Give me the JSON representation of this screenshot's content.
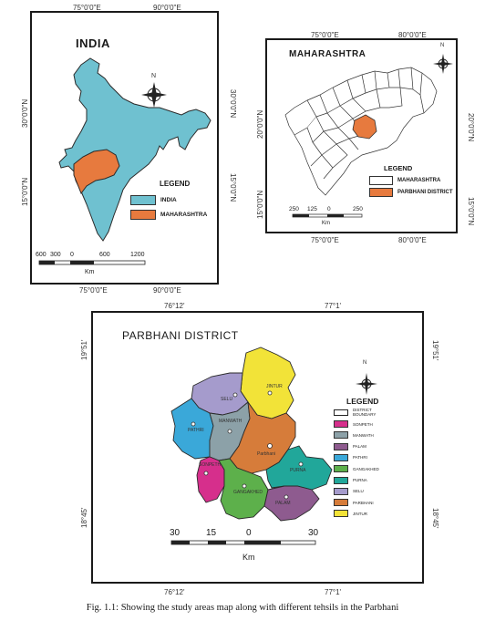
{
  "colors": {
    "india": "#6fc1d0",
    "maharashtra": "#e77a3e",
    "sonpeth": "#d62f8c",
    "manwath": "#8ca1a8",
    "palam": "#8e5b8f",
    "pathri": "#3aa8d9",
    "gangakhed": "#5db04b",
    "purna": "#21a79a",
    "selu": "#a59bcc",
    "parbhani": "#d67c3a",
    "jintur": "#f2e338"
  },
  "india_map": {
    "title": "INDIA",
    "ticks_top": [
      "75°0'0\"E",
      "90°0'0\"E"
    ],
    "ticks_bottom": [
      "75°0'0\"E",
      "90°0'0\"E"
    ],
    "ticks_left": [
      "30°0'0\"N",
      "15°0'0\"N"
    ],
    "ticks_right": [
      "30°0'0\"N",
      "15°0'0\"N"
    ],
    "compass_n": "N",
    "legend_title": "LEGEND",
    "legend": [
      {
        "label": "INDIA",
        "color_key": "india"
      },
      {
        "label": "MAHARASHTRA",
        "color_key": "maharashtra"
      }
    ],
    "scale_labels": [
      "600",
      "300",
      "0",
      "600",
      "1200"
    ],
    "scale_unit": "Km"
  },
  "maharashtra_map": {
    "title": "MAHARASHTRA",
    "ticks_top": [
      "75°0'0\"E",
      "80°0'0\"E"
    ],
    "ticks_bottom": [
      "75°0'0\"E",
      "80°0'0\"E"
    ],
    "ticks_left": [
      "20°0'0\"N",
      "15°0'0\"N"
    ],
    "ticks_right": [
      "20°0'0\"N",
      "15°0'0\"N"
    ],
    "compass_n": "N",
    "legend_title": "LEGEND",
    "legend": [
      {
        "label": "MAHARASHTRA",
        "color_key": "white"
      },
      {
        "label": "PARBHANI DISTRICT",
        "color_key": "maharashtra"
      }
    ],
    "scale_labels": [
      "250",
      "125",
      "0",
      "250"
    ],
    "scale_unit": "Km"
  },
  "parbhani_map": {
    "title": "PARBHANI DISTRICT",
    "ticks_top": [
      "76°12'",
      "77°1'"
    ],
    "ticks_bottom": [
      "76°12'",
      "77°1'"
    ],
    "ticks_left": [
      "19°51'",
      "18°45'"
    ],
    "ticks_right": [
      "19°51'",
      "18°45'"
    ],
    "compass_n": "N",
    "legend_title": "LEGEND",
    "boundary_label": "DISTRICT BOUNDARY",
    "tehsils": [
      {
        "name": "SONPETH",
        "color_key": "sonpeth"
      },
      {
        "name": "MANWATH",
        "color_key": "manwath"
      },
      {
        "name": "PALAM",
        "color_key": "palam"
      },
      {
        "name": "PATHRI",
        "color_key": "pathri"
      },
      {
        "name": "GANGAKHED",
        "color_key": "gangakhed"
      },
      {
        "name": "PURNA",
        "color_key": "purna"
      },
      {
        "name": "SELU",
        "color_key": "selu"
      },
      {
        "name": "PARBHANI",
        "color_key": "parbhani"
      },
      {
        "name": "JINTUR",
        "color_key": "jintur"
      }
    ],
    "map_labels": {
      "selu": "SELU",
      "jintur": "JINTUR",
      "manwath": "MANWATH",
      "pathri": "PATHRI",
      "parbhani": "Parbhani",
      "purna": "PURNA",
      "sonpeth": "SONPETH",
      "gangakhed": "GANGAKHED",
      "palam": "PALAM"
    },
    "scale_labels": [
      "30",
      "15",
      "0",
      "30"
    ],
    "scale_unit": "Km"
  },
  "caption": "Fig. 1.1: Showing the study areas map along with different tehsils in the Parbhani"
}
